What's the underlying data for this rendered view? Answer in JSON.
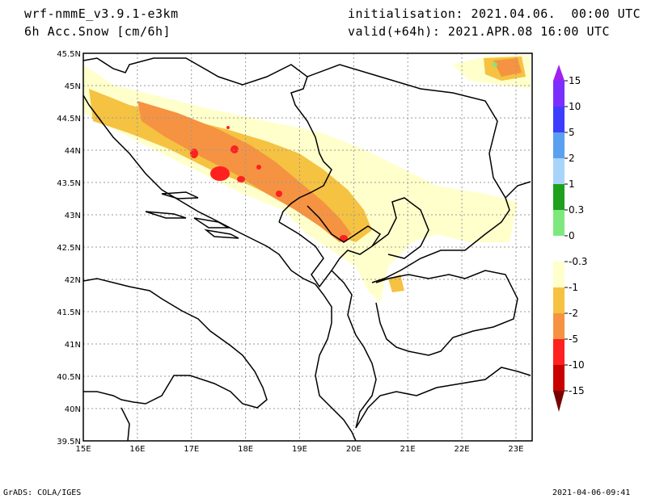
{
  "header": {
    "model": "wrf-nmmE_v3.9.1-e3km",
    "field": "6h Acc.Snow [cm/6h]",
    "init": "initialisation: 2021.04.06.  00:00 UTC",
    "valid": "valid(+64h): 2021.APR.08 16:00 UTC"
  },
  "map": {
    "lon_range": [
      15,
      23.3
    ],
    "lat_range": [
      39.5,
      45.5
    ],
    "x_ticks": [
      "15E",
      "16E",
      "17E",
      "18E",
      "19E",
      "20E",
      "21E",
      "22E",
      "23E"
    ],
    "y_ticks": [
      "39.5N",
      "40N",
      "40.5N",
      "41N",
      "41.5N",
      "42N",
      "42.5N",
      "43N",
      "43.5N",
      "44N",
      "44.5N",
      "45N",
      "45.5N"
    ],
    "grid": true
  },
  "colorbar": {
    "labels": [
      "15",
      "10",
      "5",
      "2",
      "1",
      "0.3",
      "0",
      "-0.3",
      "-1",
      "-2",
      "-5",
      "-10",
      "-15"
    ],
    "colors": [
      "#7b2fff",
      "#3d3dff",
      "#5aa0f0",
      "#a8d4fa",
      "#1ea01e",
      "#7ee87e",
      "#ffffff",
      "#ffffcc",
      "#f5c242",
      "#f59342",
      "#ff2020",
      "#c80000",
      "#7a0000"
    ],
    "top_triangle_color": "#a020f0",
    "bottom_triangle_color": "#7a0000"
  },
  "footer": {
    "left": "GrADS: COLA/IGES",
    "right": "2021-04-06-09:41"
  }
}
